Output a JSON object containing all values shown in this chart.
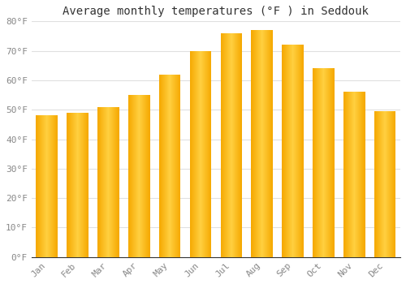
{
  "title": "Average monthly temperatures (°F ) in Seddouk",
  "months": [
    "Jan",
    "Feb",
    "Mar",
    "Apr",
    "May",
    "Jun",
    "Jul",
    "Aug",
    "Sep",
    "Oct",
    "Nov",
    "Dec"
  ],
  "values": [
    48,
    49,
    51,
    55,
    62,
    70,
    76,
    77,
    72,
    64,
    56,
    49.5
  ],
  "bar_color_left": "#F5A800",
  "bar_color_mid": "#FFD040",
  "bar_color_right": "#F5A800",
  "ylim": [
    0,
    80
  ],
  "yticks": [
    0,
    10,
    20,
    30,
    40,
    50,
    60,
    70,
    80
  ],
  "ytick_labels": [
    "0°F",
    "10°F",
    "20°F",
    "30°F",
    "40°F",
    "50°F",
    "60°F",
    "70°F",
    "80°F"
  ],
  "background_color": "#FFFFFF",
  "grid_color": "#E0E0E0",
  "title_fontsize": 10,
  "tick_fontsize": 8,
  "bar_width": 0.7,
  "figsize": [
    5.0,
    3.5
  ],
  "dpi": 100
}
